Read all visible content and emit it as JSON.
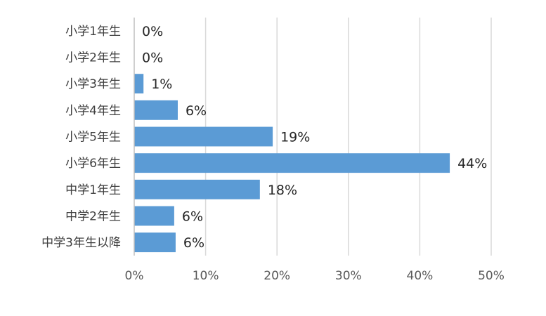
{
  "chart_data": {
    "type": "bar",
    "orientation": "horizontal",
    "categories": [
      "小学1年生",
      "小学2年生",
      "小学3年生",
      "小学4年生",
      "小学5年生",
      "小学6年生",
      "中学1年生",
      "中学2年生",
      "中学3年生以降"
    ],
    "values": [
      0,
      0,
      1,
      6,
      19,
      44,
      18,
      6,
      6
    ],
    "value_labels": [
      "0%",
      "0%",
      "1%",
      "6%",
      "19%",
      "44%",
      "18%",
      "6%",
      "6%"
    ],
    "bar_values_precise": [
      0,
      0,
      1.3,
      6.1,
      19.4,
      44.2,
      17.6,
      5.6,
      5.8
    ],
    "xlim": [
      0,
      50
    ],
    "x_ticks": [
      0,
      10,
      20,
      30,
      40,
      50
    ],
    "x_tick_labels": [
      "0%",
      "10%",
      "20%",
      "30%",
      "40%",
      "50%"
    ],
    "title": "",
    "xlabel": "",
    "ylabel": "",
    "grid": "vertical",
    "legend": "none",
    "bar_color": "#5b9bd5"
  }
}
